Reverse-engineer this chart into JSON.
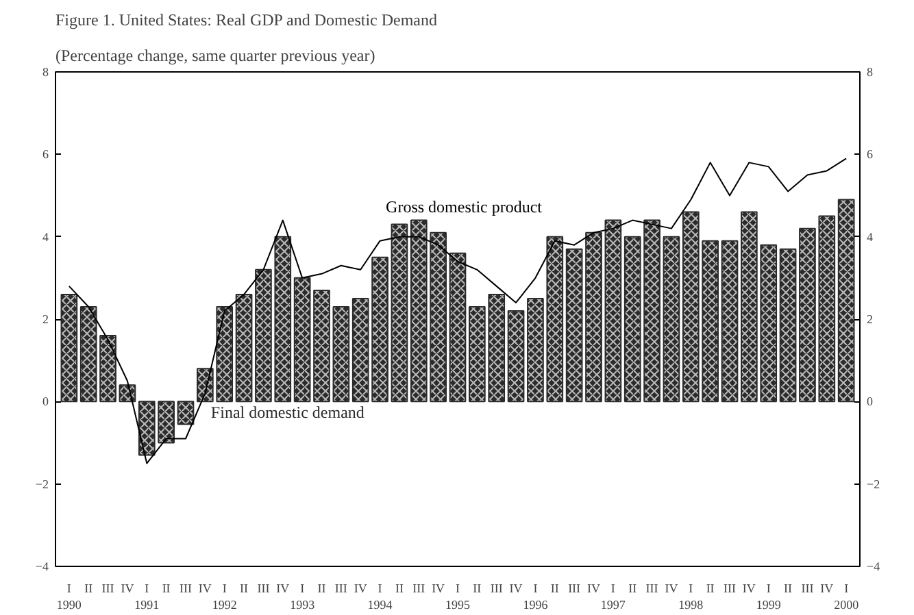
{
  "chart_data": {
    "type": "bar",
    "title": "Figure 1. United States: Real GDP and Domestic Demand",
    "subtitle": "(Percentage change, same quarter previous year)",
    "categories": [
      "I\n1990",
      "II",
      "III",
      "IV",
      "I\n1991",
      "II",
      "III",
      "IV",
      "I\n1992",
      "II",
      "III",
      "IV",
      "I\n1993",
      "II",
      "III",
      "IV",
      "I\n1994",
      "II",
      "III",
      "IV",
      "I\n1995",
      "II",
      "III",
      "IV",
      "I\n1996",
      "II",
      "III",
      "IV",
      "I\n1997",
      "II",
      "III",
      "IV",
      "I\n1998",
      "II",
      "III",
      "IV",
      "I\n1999",
      "II",
      "III",
      "IV",
      "I\n2000"
    ],
    "series": [
      {
        "name": "Final domestic demand",
        "color": "#2b2b2b",
        "values": [
          2.6,
          2.3,
          1.6,
          0.4,
          -1.3,
          -1.0,
          -0.55,
          0.8,
          2.3,
          2.6,
          3.2,
          4.0,
          3.0,
          2.7,
          2.3,
          2.5,
          3.5,
          4.3,
          4.4,
          4.1,
          3.6,
          2.3,
          2.6,
          2.2,
          2.5,
          4.0,
          3.7,
          4.1,
          4.4,
          4.0,
          4.4,
          4.0,
          4.6,
          3.9,
          3.9,
          4.6,
          3.8,
          3.7,
          4.2,
          4.5,
          4.9
        ]
      },
      {
        "name": "Gross domestic product",
        "type": "line",
        "color": "#000000",
        "values": [
          2.8,
          2.3,
          1.5,
          0.5,
          -1.5,
          -0.9,
          -0.9,
          0.2,
          2.2,
          2.6,
          3.2,
          4.4,
          3.0,
          3.1,
          3.3,
          3.2,
          3.9,
          4.0,
          4.0,
          3.8,
          3.4,
          3.2,
          2.8,
          2.4,
          3.0,
          3.9,
          3.8,
          4.1,
          4.2,
          4.4,
          4.3,
          4.2,
          4.9,
          5.8,
          5.0,
          5.8,
          5.7,
          5.1,
          5.5,
          5.6,
          5.9
        ]
      }
    ],
    "ylim": [
      -4,
      8
    ],
    "yticks": [
      -4,
      -2,
      0,
      2,
      4,
      6,
      8
    ],
    "y2lim": [
      -4,
      8
    ],
    "y2ticks": [
      -4,
      -2,
      0,
      2,
      4,
      6,
      8
    ],
    "grid": false
  }
}
